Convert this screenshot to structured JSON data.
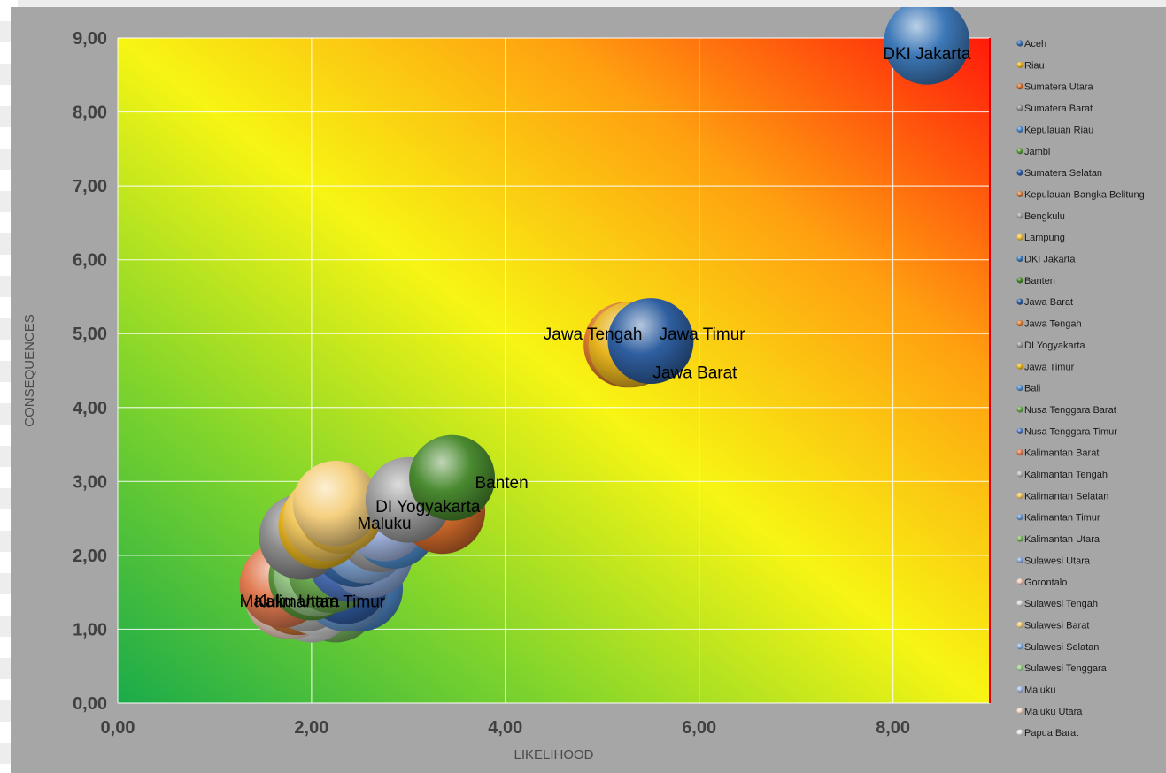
{
  "chart_data": {
    "type": "bubble",
    "xlabel": "LIKELIHOOD",
    "ylabel": "CONSEQUENCES",
    "xlim": [
      0,
      9
    ],
    "ylim": [
      0,
      9
    ],
    "xticks": [
      "0,00",
      "2,00",
      "4,00",
      "6,00",
      "8,00"
    ],
    "yticks": [
      "0,00",
      "1,00",
      "2,00",
      "3,00",
      "4,00",
      "5,00",
      "6,00",
      "7,00",
      "8,00",
      "9,00"
    ],
    "grid": true,
    "background": "risk gradient green (bottom-left) to yellow to red (top-right)",
    "legend_position": "right",
    "points": [
      {
        "name": "Aceh",
        "x": 2.45,
        "y": 2.15,
        "color": "#3a6fb0"
      },
      {
        "name": "Riau",
        "x": 2.1,
        "y": 2.4,
        "color": "#e8b520"
      },
      {
        "name": "Sumatera Utara",
        "x": 3.35,
        "y": 2.6,
        "color": "#d06a2a"
      },
      {
        "name": "Sumatera Barat",
        "x": 1.9,
        "y": 2.25,
        "color": "#8c8c8c"
      },
      {
        "name": "Kepulauan Riau",
        "x": 2.5,
        "y": 1.55,
        "color": "#4f89c9"
      },
      {
        "name": "Jambi",
        "x": 2.0,
        "y": 1.7,
        "color": "#5b9a3c"
      },
      {
        "name": "Sumatera Selatan",
        "x": 2.35,
        "y": 1.65,
        "color": "#3260a8"
      },
      {
        "name": "Kepulauan Bangka Belitung",
        "x": 1.85,
        "y": 1.5,
        "color": "#d07a3a"
      },
      {
        "name": "Bengkulu",
        "x": 2.7,
        "y": 2.35,
        "color": "#a0a0a0"
      },
      {
        "name": "Lampung",
        "x": 2.3,
        "y": 2.6,
        "color": "#f0c040"
      },
      {
        "name": "DKI Jakarta",
        "x": 8.35,
        "y": 8.95,
        "label": "DKI Jakarta",
        "color": "#3d78b8"
      },
      {
        "name": "Banten",
        "x": 3.45,
        "y": 3.05,
        "label": "Banten",
        "color": "#4a8a30"
      },
      {
        "name": "Jawa Barat",
        "x": 5.5,
        "y": 4.9,
        "label": "Jawa Barat",
        "color": "#2f5fa0"
      },
      {
        "name": "Jawa Tengah",
        "x": 5.25,
        "y": 4.85,
        "label": "Jawa Tengah",
        "color": "#d87a2e"
      },
      {
        "name": "DI Yogyakarta",
        "x": 3.0,
        "y": 2.75,
        "label": "DI Yogyakarta",
        "color": "#9a9a9a"
      },
      {
        "name": "Jawa Timur",
        "x": 5.3,
        "y": 4.85,
        "label": "Jawa Timur",
        "color": "#e6b31e"
      },
      {
        "name": "Bali",
        "x": 2.85,
        "y": 2.4,
        "color": "#4f8fd0"
      },
      {
        "name": "Nusa Tenggara Barat",
        "x": 2.2,
        "y": 1.8,
        "color": "#6aa84f"
      },
      {
        "name": "Nusa Tenggara Timur",
        "x": 2.4,
        "y": 1.95,
        "color": "#5077c0"
      },
      {
        "name": "Kalimantan Barat",
        "x": 1.7,
        "y": 1.6,
        "color": "#e07a50"
      },
      {
        "name": "Kalimantan Tengah",
        "x": 1.95,
        "y": 1.55,
        "color": "#b8b8b8"
      },
      {
        "name": "Kalimantan Selatan",
        "x": 2.15,
        "y": 2.5,
        "color": "#f2c860"
      },
      {
        "name": "Kalimantan Timur",
        "x": 2.35,
        "y": 1.55,
        "label": "Kalimantan Timur",
        "color": "#6a9ad0"
      },
      {
        "name": "Kalimantan Utara",
        "x": 2.25,
        "y": 1.4,
        "color": "#7ab860"
      },
      {
        "name": "Sulawesi Utara",
        "x": 2.6,
        "y": 2.0,
        "color": "#8aa8d8"
      },
      {
        "name": "Gorontalo",
        "x": 1.75,
        "y": 1.45,
        "color": "#f0c8b8"
      },
      {
        "name": "Sulawesi Tengah",
        "x": 2.0,
        "y": 1.4,
        "color": "#d8d8d8"
      },
      {
        "name": "Sulawesi Barat",
        "x": 2.25,
        "y": 2.7,
        "color": "#f5d080"
      },
      {
        "name": "Sulawesi Selatan",
        "x": 2.55,
        "y": 2.2,
        "color": "#88aee0"
      },
      {
        "name": "Sulawesi Tenggara",
        "x": 2.05,
        "y": 1.75,
        "color": "#98c888"
      },
      {
        "name": "Maluku",
        "x": 2.75,
        "y": 2.5,
        "label": "Maluku",
        "color": "#a8bce8"
      },
      {
        "name": "Maluku Utara",
        "x": 1.8,
        "y": 1.45,
        "label": "Maluku Utara",
        "color": "#f4d6c8"
      },
      {
        "name": "Papua Barat",
        "x": 2.05,
        "y": 1.5,
        "color": "#e8e8e8"
      }
    ]
  }
}
